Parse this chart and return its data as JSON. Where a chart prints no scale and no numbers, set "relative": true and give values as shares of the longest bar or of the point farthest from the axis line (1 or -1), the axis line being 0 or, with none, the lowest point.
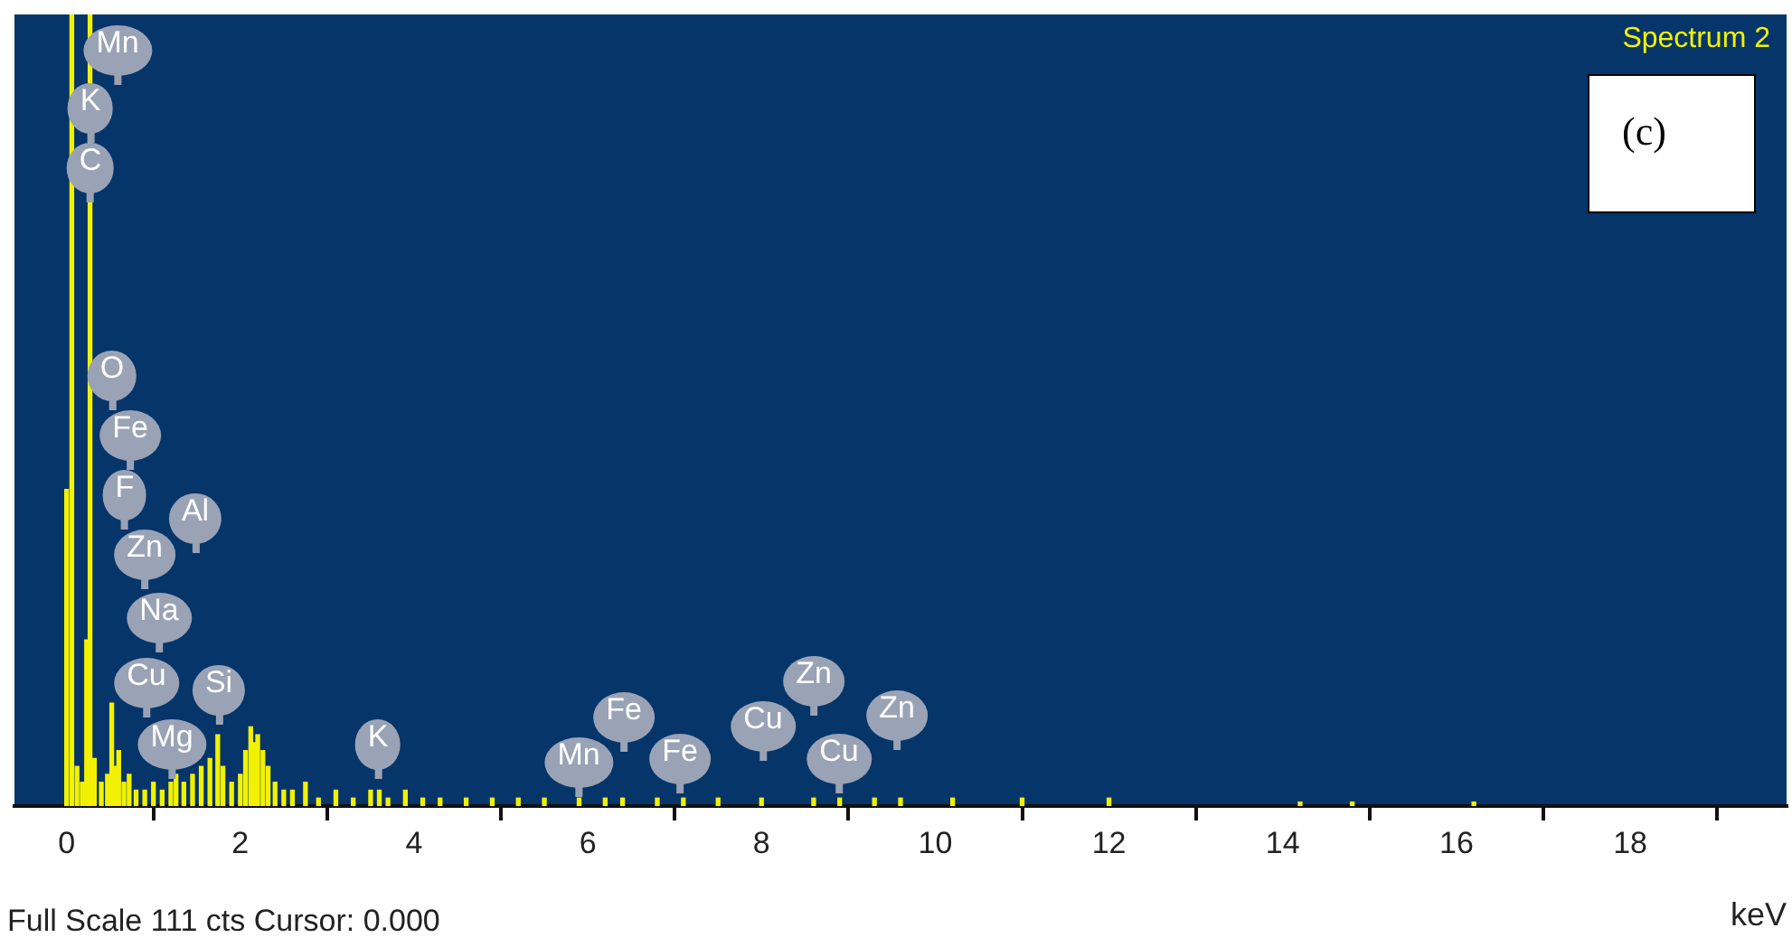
{
  "chart_data": {
    "type": "bar",
    "relative": true,
    "xlabel": "keV",
    "color": "#f2f200",
    "x": [
      0.0,
      0.06,
      0.12,
      0.18,
      0.23,
      0.27,
      0.32,
      0.4,
      0.47,
      0.52,
      0.56,
      0.6,
      0.66,
      0.72,
      0.8,
      0.9,
      1.0,
      1.1,
      1.2,
      1.26,
      1.35,
      1.45,
      1.55,
      1.65,
      1.74,
      1.8,
      1.9,
      2.0,
      2.06,
      2.12,
      2.16,
      2.2,
      2.26,
      2.32,
      2.4,
      2.5,
      2.6,
      2.75,
      2.9,
      3.1,
      3.3,
      3.5,
      3.6,
      3.7,
      3.9,
      4.1,
      4.3,
      4.6,
      4.9,
      5.2,
      5.5,
      5.9,
      6.2,
      6.4,
      6.8,
      7.1,
      7.5,
      8.0,
      8.6,
      8.9,
      9.3,
      9.6,
      10.2,
      11.0,
      12.0,
      14.2,
      14.8,
      16.2
    ],
    "values": [
      0.4,
      1,
      0.05,
      0.03,
      0.21,
      1,
      0.06,
      0.03,
      0.04,
      0.13,
      0.05,
      0.07,
      0.03,
      0.04,
      0.02,
      0.02,
      0.03,
      0.02,
      0.03,
      0.04,
      0.03,
      0.04,
      0.05,
      0.06,
      0.09,
      0.05,
      0.03,
      0.04,
      0.07,
      0.1,
      0.08,
      0.09,
      0.07,
      0.05,
      0.03,
      0.02,
      0.02,
      0.03,
      0.01,
      0.02,
      0.01,
      0.02,
      0.02,
      0.01,
      0.02,
      0.01,
      0.01,
      0.01,
      0.01,
      0.01,
      0.01,
      0.01,
      0.01,
      0.01,
      0.01,
      0.01,
      0.01,
      0.01,
      0.01,
      0.01,
      0.01,
      0.01,
      0.01,
      0.01,
      0.01,
      0.005,
      0.005,
      0.005
    ],
    "xlim": [
      -0.6,
      19.8
    ],
    "xticks": [
      0,
      2,
      4,
      6,
      8,
      10,
      12,
      14,
      16,
      18
    ],
    "annotations": [
      "Spectrum 2",
      "(c)",
      "Full Scale 111 cts Cursor: 0.000",
      "Mn",
      "K",
      "C",
      "O",
      "Fe",
      "F",
      "Al",
      "Zn",
      "Na",
      "Cu",
      "Si",
      "Mg",
      "K",
      "Mn",
      "Fe",
      "Fe",
      "Cu",
      "Zn",
      "Cu",
      "Zn"
    ]
  }
}
